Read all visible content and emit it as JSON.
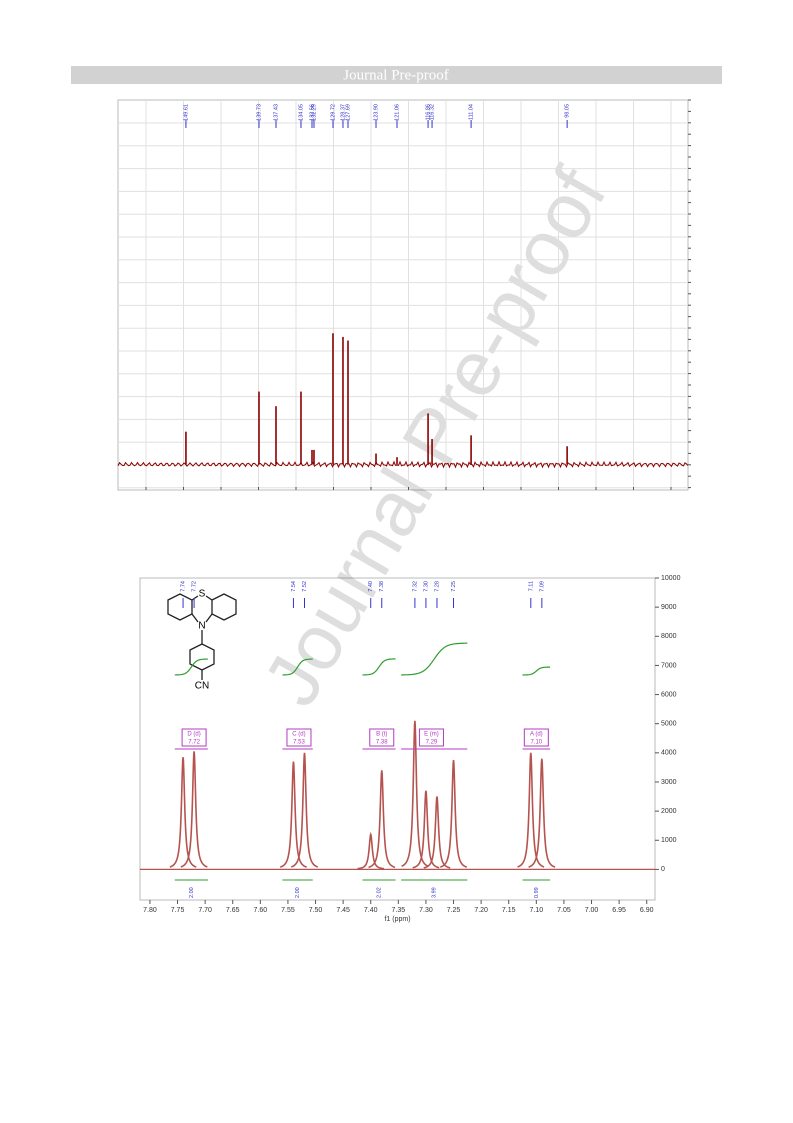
{
  "header": {
    "title": "Journal Pre-proof"
  },
  "watermark": "Journal Pre-proof",
  "chart_data": [
    {
      "type": "stick-spectrum",
      "color": "#8b0000",
      "label_color": "#3333cc",
      "xlim": [
        158.8,
        81.7
      ],
      "ylim": [
        -0.07,
        1
      ],
      "peaks": [
        {
          "label": "149.61",
          "shift": 149.61,
          "height": 0.09
        },
        {
          "label": "139.73",
          "shift": 139.73,
          "height": 0.2
        },
        {
          "label": "137.43",
          "shift": 137.43,
          "height": 0.16
        },
        {
          "label": "134.05",
          "shift": 134.05,
          "height": 0.2
        },
        {
          "label": "132.56",
          "shift": 132.56,
          "height": 0.04
        },
        {
          "label": "132.29",
          "shift": 132.29,
          "height": 0.04
        },
        {
          "label": "129.72",
          "shift": 129.72,
          "height": 0.36
        },
        {
          "label": "128.37",
          "shift": 128.37,
          "height": 0.35
        },
        {
          "label": "127.69",
          "shift": 127.69,
          "height": 0.34
        },
        {
          "label": "123.90",
          "shift": 123.9,
          "height": 0.03
        },
        {
          "label": "121.06",
          "shift": 121.06,
          "height": 0.02
        },
        {
          "label": "116.86",
          "shift": 116.86,
          "height": 0.14
        },
        {
          "label": "116.32",
          "shift": 116.32,
          "height": 0.07
        },
        {
          "label": "111.04",
          "shift": 111.04,
          "height": 0.08
        },
        {
          "label": "98.05",
          "shift": 98.05,
          "height": 0.05
        }
      ]
    },
    {
      "type": "nmr-spectrum",
      "color": "#b5534f",
      "label_color": "#3333cc",
      "multiplet_color": "#b03cc0",
      "integral_color": "#2e9e2e",
      "x_label": "f1 (ppm)",
      "xlim": [
        7.818,
        6.885
      ],
      "ylim": [
        -1050,
        10000
      ],
      "xticks": [
        {
          "value": 7.8,
          "label": "7.80"
        },
        {
          "value": 7.75,
          "label": "7.75"
        },
        {
          "value": 7.7,
          "label": "7.70"
        },
        {
          "value": 7.65,
          "label": "7.65"
        },
        {
          "value": 7.6,
          "label": "7.60"
        },
        {
          "value": 7.55,
          "label": "7.55"
        },
        {
          "value": 7.5,
          "label": "7.50"
        },
        {
          "value": 7.45,
          "label": "7.45"
        },
        {
          "value": 7.4,
          "label": "7.40"
        },
        {
          "value": 7.35,
          "label": "7.35"
        },
        {
          "value": 7.3,
          "label": "7.30"
        },
        {
          "value": 7.25,
          "label": "7.25"
        },
        {
          "value": 7.2,
          "label": "7.20"
        },
        {
          "value": 7.15,
          "label": "7.15"
        },
        {
          "value": 7.1,
          "label": "7.10"
        },
        {
          "value": 7.05,
          "label": "7.05"
        },
        {
          "value": 7,
          "label": "7.00"
        },
        {
          "value": 6.95,
          "label": "6.95"
        },
        {
          "value": 6.9,
          "label": "6.90"
        }
      ],
      "yticks": [
        10000,
        9000,
        8000,
        7000,
        6000,
        5000,
        4000,
        3000,
        2000,
        1000,
        0
      ],
      "peaks": [
        {
          "label": "7.74",
          "shift": 7.74,
          "height": 3850
        },
        {
          "label": "7.72",
          "shift": 7.72,
          "height": 4050
        },
        {
          "label": "7.54",
          "shift": 7.54,
          "height": 3700
        },
        {
          "label": "7.52",
          "shift": 7.52,
          "height": 4000
        },
        {
          "label": "7.40",
          "shift": 7.4,
          "height": 1200
        },
        {
          "label": "7.38",
          "shift": 7.38,
          "height": 3400
        },
        {
          "label": "7.32",
          "shift": 7.32,
          "height": 5100
        },
        {
          "label": "7.30",
          "shift": 7.3,
          "height": 2700
        },
        {
          "label": "7.28",
          "shift": 7.28,
          "height": 2500
        },
        {
          "label": "7.25",
          "shift": 7.25,
          "height": 3750
        },
        {
          "label": "7.11",
          "shift": 7.11,
          "height": 4000
        },
        {
          "label": "7.09",
          "shift": 7.09,
          "height": 3800
        }
      ],
      "multiplets": [
        {
          "name": "D (d)",
          "label": "7.72",
          "shift": 7.72,
          "range": [
            7.755,
            7.695
          ]
        },
        {
          "name": "C (d)",
          "label": "7.53",
          "shift": 7.53,
          "range": [
            7.56,
            7.505
          ]
        },
        {
          "name": "B (t)",
          "label": "7.38",
          "shift": 7.38,
          "range": [
            7.415,
            7.355
          ]
        },
        {
          "name": "E (m)",
          "label": "7.29",
          "shift": 7.29,
          "range": [
            7.345,
            7.225
          ]
        },
        {
          "name": "A (d)",
          "label": "7.10",
          "shift": 7.1,
          "range": [
            7.125,
            7.075
          ]
        }
      ],
      "integrals": [
        {
          "value": 2,
          "label": "2.00",
          "range": [
            7.755,
            7.695
          ]
        },
        {
          "value": 2,
          "label": "2.00",
          "range": [
            7.56,
            7.505
          ]
        },
        {
          "value": 2.02,
          "label": "2.02",
          "range": [
            7.415,
            7.355
          ]
        },
        {
          "value": 3.99,
          "label": "3.99",
          "range": [
            7.345,
            7.225
          ]
        },
        {
          "value": 0.99,
          "label": "0.99",
          "range": [
            7.125,
            7.075
          ]
        }
      ],
      "structure": {
        "s": "S",
        "n": "N",
        "cn": "CN"
      }
    }
  ]
}
